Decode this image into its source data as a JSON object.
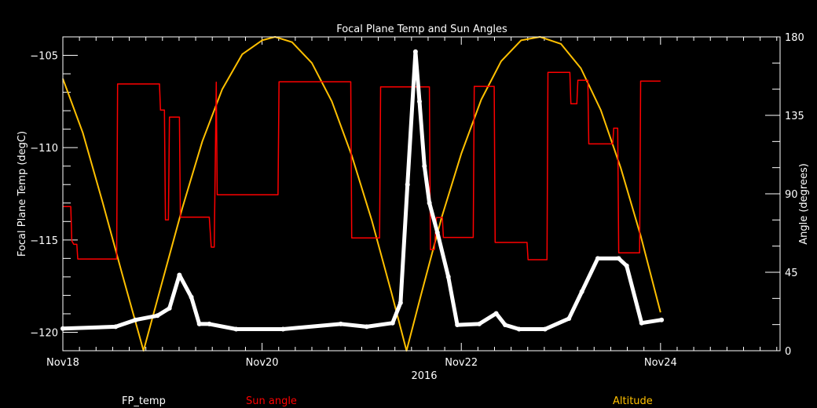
{
  "chart_data": {
    "type": "line",
    "title": "Focal Plane Temp and Sun Angles",
    "xlabel": "2016",
    "ylabel": "Focal Plane Temp (degC)",
    "y2label": "Angle (degrees)",
    "x_unit": "days since Nov18",
    "xlim": [
      0,
      7.2
    ],
    "ylim": [
      -121,
      -104
    ],
    "y2lim": [
      0,
      180
    ],
    "x_ticks": [
      {
        "value": 0,
        "label": "Nov18"
      },
      {
        "value": 2,
        "label": "Nov20"
      },
      {
        "value": 4,
        "label": "Nov22"
      },
      {
        "value": 6,
        "label": "Nov24"
      }
    ],
    "y_ticks": [
      {
        "value": -105,
        "label": "−105"
      },
      {
        "value": -110,
        "label": "−110"
      },
      {
        "value": -115,
        "label": "−115"
      },
      {
        "value": -120,
        "label": "−120"
      }
    ],
    "y2_ticks": [
      {
        "value": 0,
        "label": "0"
      },
      {
        "value": 45,
        "label": "45"
      },
      {
        "value": 90,
        "label": "90"
      },
      {
        "value": 135,
        "label": "135"
      },
      {
        "value": 180,
        "label": "180"
      }
    ],
    "legend": [
      {
        "label": "FP_temp",
        "color": "#ffffff"
      },
      {
        "label": "Sun angle",
        "color": "#ff0000"
      },
      {
        "label": "Altitude",
        "color": "#ffc000"
      }
    ],
    "series": [
      {
        "name": "FP_temp",
        "axis": "left",
        "color": "#ffffff",
        "points": [
          [
            0,
            -119.8
          ],
          [
            0.53,
            -119.7
          ],
          [
            0.73,
            -119.33
          ],
          [
            0.95,
            -119.1
          ],
          [
            1.07,
            -118.7
          ],
          [
            1.17,
            -116.9
          ],
          [
            1.29,
            -118.1
          ],
          [
            1.37,
            -119.55
          ],
          [
            1.47,
            -119.55
          ],
          [
            1.74,
            -119.83
          ],
          [
            2.21,
            -119.83
          ],
          [
            2.79,
            -119.55
          ],
          [
            3.05,
            -119.7
          ],
          [
            3.31,
            -119.5
          ],
          [
            3.39,
            -118.4
          ],
          [
            3.46,
            -112
          ],
          [
            3.54,
            -104.8
          ],
          [
            3.58,
            -107.5
          ],
          [
            3.63,
            -111.0
          ],
          [
            3.68,
            -113.0
          ],
          [
            3.76,
            -114.6
          ],
          [
            3.87,
            -117.0
          ],
          [
            3.96,
            -119.6
          ],
          [
            4.18,
            -119.55
          ],
          [
            4.35,
            -118.98
          ],
          [
            4.44,
            -119.6
          ],
          [
            4.58,
            -119.83
          ],
          [
            4.84,
            -119.83
          ],
          [
            5.08,
            -119.26
          ],
          [
            5.21,
            -117.8
          ],
          [
            5.37,
            -116.0
          ],
          [
            5.58,
            -116.0
          ],
          [
            5.66,
            -116.4
          ],
          [
            5.81,
            -119.5
          ],
          [
            6.01,
            -119.33
          ]
        ]
      },
      {
        "name": "Sun angle",
        "axis": "right",
        "color": "#ff0000",
        "points": [
          [
            0,
            82.7
          ],
          [
            0.08,
            82.7
          ],
          [
            0.09,
            63
          ],
          [
            0.11,
            61
          ],
          [
            0.14,
            61
          ],
          [
            0.15,
            52.6
          ],
          [
            0.54,
            52.6
          ],
          [
            0.55,
            153
          ],
          [
            0.97,
            153
          ],
          [
            0.98,
            138
          ],
          [
            1.02,
            138
          ],
          [
            1.03,
            75
          ],
          [
            1.06,
            75
          ],
          [
            1.07,
            134
          ],
          [
            1.17,
            134
          ],
          [
            1.18,
            76.6
          ],
          [
            1.47,
            76.6
          ],
          [
            1.49,
            59.4
          ],
          [
            1.52,
            59.4
          ],
          [
            1.54,
            154
          ],
          [
            1.55,
            89.4
          ],
          [
            2.16,
            89.4
          ],
          [
            2.17,
            154.2
          ],
          [
            2.89,
            154.2
          ],
          [
            2.9,
            64.7
          ],
          [
            3.18,
            64.7
          ],
          [
            3.19,
            151.3
          ],
          [
            3.68,
            151.3
          ],
          [
            3.69,
            58
          ],
          [
            3.73,
            58
          ],
          [
            3.75,
            76.4
          ],
          [
            3.81,
            76.4
          ],
          [
            3.82,
            65
          ],
          [
            4.12,
            65
          ],
          [
            4.13,
            151.6
          ],
          [
            4.33,
            151.6
          ],
          [
            4.34,
            62.1
          ],
          [
            4.66,
            62.1
          ],
          [
            4.67,
            52.2
          ],
          [
            4.86,
            52.2
          ],
          [
            4.87,
            159.6
          ],
          [
            5.09,
            159.6
          ],
          [
            5.1,
            141.6
          ],
          [
            5.16,
            141.6
          ],
          [
            5.17,
            155.1
          ],
          [
            5.27,
            155.1
          ],
          [
            5.28,
            118.6
          ],
          [
            5.52,
            118.6
          ],
          [
            5.53,
            127.6
          ],
          [
            5.57,
            127.6
          ],
          [
            5.58,
            56.1
          ],
          [
            5.79,
            56.1
          ],
          [
            5.8,
            154.6
          ],
          [
            6.0,
            154.6
          ]
        ]
      },
      {
        "name": "Altitude",
        "axis": "right",
        "color": "#ffc000",
        "points": [
          [
            0,
            156
          ],
          [
            0.2,
            125
          ],
          [
            0.4,
            85
          ],
          [
            0.6,
            43
          ],
          [
            0.81,
            0
          ],
          [
            1.0,
            40
          ],
          [
            1.2,
            82
          ],
          [
            1.4,
            120
          ],
          [
            1.6,
            150
          ],
          [
            1.8,
            170
          ],
          [
            2.0,
            178
          ],
          [
            2.13,
            180
          ],
          [
            2.3,
            177
          ],
          [
            2.5,
            165
          ],
          [
            2.7,
            143
          ],
          [
            2.9,
            112
          ],
          [
            3.1,
            75
          ],
          [
            3.3,
            33
          ],
          [
            3.45,
            0
          ],
          [
            3.6,
            33
          ],
          [
            3.8,
            76
          ],
          [
            4.0,
            113
          ],
          [
            4.2,
            144
          ],
          [
            4.4,
            166
          ],
          [
            4.6,
            178
          ],
          [
            4.79,
            180
          ],
          [
            5.0,
            176
          ],
          [
            5.2,
            162
          ],
          [
            5.4,
            138
          ],
          [
            5.6,
            105
          ],
          [
            5.8,
            66
          ],
          [
            6.0,
            22
          ]
        ]
      }
    ]
  }
}
